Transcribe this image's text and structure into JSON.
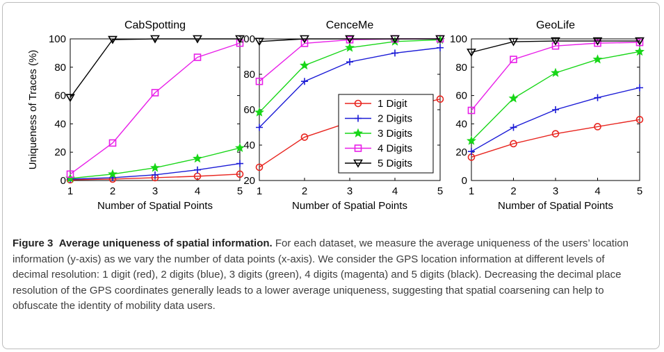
{
  "figure": {
    "caption_label": "Figure 3",
    "caption_title": "Average uniqueness of spatial information.",
    "caption_text": "For each dataset, we measure the average uniqueness of the users’ location information (y-axis) as we vary the number of data points (x-axis). We consider the GPS location information at different levels of decimal resolution: 1 digit (red), 2 digits (blue), 3 digits (green), 4 digits (magenta) and 5 digits (black). Decreasing the decimal place resolution of the GPS coordinates generally leads to a lower average uniqueness, suggesting that spatial coarsening can help to obfuscate the identity of mobility data users."
  },
  "series_style": [
    {
      "name": "1 Digit",
      "color": "#e8251f",
      "marker": "circle"
    },
    {
      "name": "2 Digits",
      "color": "#1a1ad6",
      "marker": "plus"
    },
    {
      "name": "3 Digits",
      "color": "#17d617",
      "marker": "star"
    },
    {
      "name": "4 Digits",
      "color": "#e81ee8",
      "marker": "square"
    },
    {
      "name": "5 Digits",
      "color": "#000000",
      "marker": "triangle-down"
    }
  ],
  "chart_data": [
    {
      "type": "line",
      "title": "CabSpotting",
      "xlabel": "Number of Spatial Points",
      "ylabel": "Uniqueness of Traces (%)",
      "x": [
        1,
        2,
        3,
        4,
        5
      ],
      "xlim": [
        1,
        5
      ],
      "ylim": [
        0,
        100
      ],
      "yticks": [
        0,
        20,
        40,
        60,
        80,
        100
      ],
      "grid": false,
      "legend": null,
      "series": [
        {
          "name": "1 Digit",
          "values": [
            0.5,
            1,
            2,
            3,
            4.5
          ]
        },
        {
          "name": "2 Digits",
          "values": [
            1,
            2,
            4,
            7.5,
            12
          ]
        },
        {
          "name": "3 Digits",
          "values": [
            1.5,
            4.5,
            9,
            15.5,
            23
          ]
        },
        {
          "name": "4 Digits",
          "values": [
            4.5,
            26.5,
            62,
            87,
            97
          ]
        },
        {
          "name": "5 Digits",
          "values": [
            58.5,
            99.5,
            100,
            100,
            100
          ]
        }
      ]
    },
    {
      "type": "line",
      "title": "CenceMe",
      "xlabel": "Number of Spatial Points",
      "ylabel": "",
      "x": [
        1,
        2,
        3,
        4,
        5
      ],
      "xlim": [
        1,
        5
      ],
      "ylim": [
        20,
        100
      ],
      "yticks": [
        20,
        40,
        60,
        80,
        100
      ],
      "grid": false,
      "legend": "center-right",
      "series": [
        {
          "name": "1 Digit",
          "values": [
            27.5,
            44.5,
            53,
            60,
            66
          ]
        },
        {
          "name": "2 Digits",
          "values": [
            50,
            76,
            87,
            92,
            95
          ]
        },
        {
          "name": "3 Digits",
          "values": [
            58.5,
            85,
            95,
            98.5,
            99.5
          ]
        },
        {
          "name": "4 Digits",
          "values": [
            76,
            97.5,
            99.5,
            100,
            100
          ]
        },
        {
          "name": "5 Digits",
          "values": [
            98.5,
            100,
            100,
            100,
            100
          ]
        }
      ]
    },
    {
      "type": "line",
      "title": "GeoLife",
      "xlabel": "Number of Spatial Points",
      "ylabel": "",
      "x": [
        1,
        2,
        3,
        4,
        5
      ],
      "xlim": [
        1,
        5
      ],
      "ylim": [
        0,
        100
      ],
      "yticks": [
        0,
        20,
        40,
        60,
        80,
        100
      ],
      "grid": false,
      "legend": null,
      "series": [
        {
          "name": "1 Digit",
          "values": [
            16.5,
            26,
            33,
            38,
            43
          ]
        },
        {
          "name": "2 Digits",
          "values": [
            20.5,
            37.5,
            50,
            58.5,
            65.5
          ]
        },
        {
          "name": "3 Digits",
          "values": [
            28,
            58,
            76,
            85.5,
            91
          ]
        },
        {
          "name": "4 Digits",
          "values": [
            49.5,
            85.5,
            95,
            97,
            97.5
          ]
        },
        {
          "name": "5 Digits",
          "values": [
            90.5,
            98,
            98.5,
            98.5,
            98.5
          ]
        }
      ]
    }
  ]
}
